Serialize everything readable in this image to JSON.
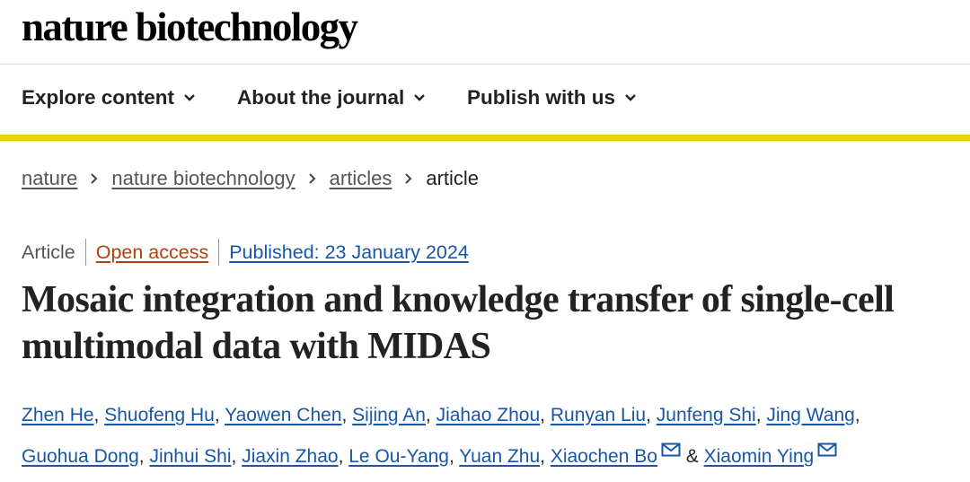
{
  "header": {
    "logo": "nature biotechnology"
  },
  "nav": {
    "items": [
      {
        "label": "Explore content"
      },
      {
        "label": "About the journal"
      },
      {
        "label": "Publish with us"
      }
    ]
  },
  "breadcrumb": {
    "items": [
      "nature",
      "nature biotechnology",
      "articles"
    ],
    "current": "article"
  },
  "article": {
    "type": "Article",
    "access": "Open access",
    "published": "Published: 23 January 2024",
    "title": "Mosaic integration and knowledge transfer of single-cell multimodal data with MIDAS",
    "authors": [
      "Zhen He",
      "Shuofeng Hu",
      "Yaowen Chen",
      "Sijing An",
      "Jiahao Zhou",
      "Runyan Liu",
      "Junfeng Shi",
      "Jing Wang",
      "Guohua Dong",
      "Jinhui Shi",
      "Jiaxin Zhao",
      "Le Ou-Yang",
      "Yuan Zhu",
      "Xiaochen Bo",
      "Xiaomin Ying"
    ],
    "conjunction": "&"
  },
  "colors": {
    "accent_yellow": "#e8d20c",
    "link_blue": "#1857a6",
    "open_access": "#b3400d"
  },
  "icons": {
    "nav_chevron": "chevron-down-icon",
    "breadcrumb_sep": "chevron-right-icon",
    "corresponding": "mail-icon"
  }
}
